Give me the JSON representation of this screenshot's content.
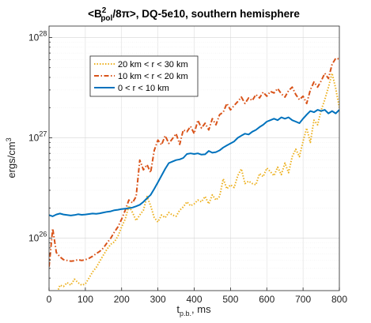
{
  "chart_data": {
    "type": "line",
    "title_parts": [
      "<B",
      "2",
      "pol",
      "/8π>, DQ-5e10, southern hemisphere"
    ],
    "xlabel_parts": [
      "t",
      "p.b.",
      ", ms"
    ],
    "ylabel_parts": [
      "ergs/cm",
      "3"
    ],
    "xlim": [
      0,
      800
    ],
    "ylim": [
      30000000000000000000000000,
      13000000000000000000000000000
    ],
    "yscale": "log",
    "grid": true,
    "legend_position": "upper-left",
    "x_ticks": [
      0,
      100,
      200,
      300,
      400,
      500,
      600,
      700,
      800
    ],
    "x_tick_labels": [
      "0",
      "100",
      "200",
      "300",
      "400",
      "500",
      "600",
      "700",
      "800"
    ],
    "y_ticks": [
      1e+26,
      1e+27,
      1e+28
    ],
    "y_tick_labels": [
      {
        "base": "10",
        "exp": "26"
      },
      {
        "base": "10",
        "exp": "27"
      },
      {
        "base": "10",
        "exp": "28"
      }
    ],
    "series": [
      {
        "name": "20 km < r < 30 km",
        "color": "#EDB120",
        "style": "dotted",
        "points": [
          [
            0,
            2.95e+25
          ],
          [
            10,
            2.6e+25
          ],
          [
            20,
            2.7e+25
          ],
          [
            30,
            3.4e+25
          ],
          [
            40,
            3.3e+25
          ],
          [
            50,
            3.6e+25
          ],
          [
            60,
            3.4e+25
          ],
          [
            70,
            3.9e+25
          ],
          [
            80,
            3.6e+25
          ],
          [
            90,
            3.4e+25
          ],
          [
            100,
            3.5e+25
          ],
          [
            110,
            4e+25
          ],
          [
            120,
            4.6e+25
          ],
          [
            130,
            5.1e+25
          ],
          [
            140,
            5.9e+25
          ],
          [
            150,
            6.8e+25
          ],
          [
            160,
            7.8e+25
          ],
          [
            170,
            8.7e+25
          ],
          [
            180,
            9.2e+25
          ],
          [
            190,
            1.05e+26
          ],
          [
            200,
            1.3e+26
          ],
          [
            210,
            1.55e+26
          ],
          [
            220,
            2.1e+26
          ],
          [
            230,
            1.8e+26
          ],
          [
            240,
            1.5e+26
          ],
          [
            250,
            1.7e+26
          ],
          [
            260,
            1.9e+26
          ],
          [
            270,
            2.6e+26
          ],
          [
            280,
            2.1e+26
          ],
          [
            290,
            1.6e+26
          ],
          [
            300,
            1.45e+26
          ],
          [
            310,
            1.7e+26
          ],
          [
            320,
            1.6e+26
          ],
          [
            330,
            1.8e+26
          ],
          [
            340,
            1.7e+26
          ],
          [
            350,
            1.65e+26
          ],
          [
            360,
            1.9e+26
          ],
          [
            370,
            2.05e+26
          ],
          [
            380,
            2.3e+26
          ],
          [
            390,
            2.1e+26
          ],
          [
            400,
            2.2e+26
          ],
          [
            410,
            2.4e+26
          ],
          [
            420,
            2.3e+26
          ],
          [
            430,
            2.6e+26
          ],
          [
            440,
            2.2e+26
          ],
          [
            450,
            2.7e+26
          ],
          [
            460,
            2.4e+26
          ],
          [
            470,
            2.6e+26
          ],
          [
            480,
            3.9e+26
          ],
          [
            490,
            3.1e+26
          ],
          [
            500,
            3.4e+26
          ],
          [
            510,
            3.2e+26
          ],
          [
            520,
            4.2e+26
          ],
          [
            530,
            4.9e+26
          ],
          [
            540,
            3.5e+26
          ],
          [
            550,
            3.7e+26
          ],
          [
            560,
            3.5e+26
          ],
          [
            570,
            3.4e+26
          ],
          [
            580,
            4.4e+26
          ],
          [
            590,
            4.1e+26
          ],
          [
            600,
            5e+26
          ],
          [
            610,
            4.6e+26
          ],
          [
            620,
            4.2e+26
          ],
          [
            630,
            5.1e+26
          ],
          [
            640,
            4.3e+26
          ],
          [
            650,
            5.6e+26
          ],
          [
            660,
            4.5e+26
          ],
          [
            670,
            6.5e+26
          ],
          [
            680,
            7.7e+26
          ],
          [
            690,
            6.5e+26
          ],
          [
            700,
            9.2e+26
          ],
          [
            710,
            1.25e+27
          ],
          [
            720,
            9e+26
          ],
          [
            730,
            1.5e+27
          ],
          [
            740,
            1.35e+27
          ],
          [
            750,
            1.9e+27
          ],
          [
            760,
            2.4e+27
          ],
          [
            770,
            3.2e+27
          ],
          [
            780,
            4.4e+27
          ],
          [
            790,
            3.1e+27
          ],
          [
            800,
            2e+27
          ]
        ]
      },
      {
        "name": "10 km < r < 20 km",
        "color": "#D95319",
        "style": "dashdot",
        "points": [
          [
            0,
            5.2e+25
          ],
          [
            5,
            8e+25
          ],
          [
            10,
            1.25e+26
          ],
          [
            15,
            9.5e+25
          ],
          [
            20,
            7.2e+25
          ],
          [
            30,
            6.5e+25
          ],
          [
            40,
            6.1e+25
          ],
          [
            50,
            6e+25
          ],
          [
            60,
            5.9e+25
          ],
          [
            70,
            5.95e+25
          ],
          [
            80,
            6.1e+25
          ],
          [
            90,
            6e+25
          ],
          [
            100,
            6.1e+25
          ],
          [
            110,
            6.3e+25
          ],
          [
            120,
            6.6e+25
          ],
          [
            130,
            7e+25
          ],
          [
            140,
            7.4e+25
          ],
          [
            150,
            8e+25
          ],
          [
            160,
            9e+25
          ],
          [
            170,
            1e+26
          ],
          [
            180,
            1.15e+26
          ],
          [
            190,
            1.3e+26
          ],
          [
            200,
            1.55e+26
          ],
          [
            210,
            1.9e+26
          ],
          [
            220,
            2.4e+26
          ],
          [
            230,
            2.25e+26
          ],
          [
            240,
            2.6e+26
          ],
          [
            250,
            6e+26
          ],
          [
            260,
            4.8e+26
          ],
          [
            270,
            5.4e+26
          ],
          [
            280,
            4.5e+26
          ],
          [
            290,
            7.5e+26
          ],
          [
            300,
            9.5e+26
          ],
          [
            310,
            8.5e+26
          ],
          [
            320,
            1.05e+27
          ],
          [
            330,
            8.8e+26
          ],
          [
            340,
            9.8e+26
          ],
          [
            350,
            1.1e+27
          ],
          [
            360,
            8.6e+26
          ],
          [
            370,
            1.2e+27
          ],
          [
            380,
            1.15e+27
          ],
          [
            390,
            1.3e+27
          ],
          [
            400,
            1.1e+27
          ],
          [
            410,
            1.5e+27
          ],
          [
            420,
            1.25e+27
          ],
          [
            430,
            1.4e+27
          ],
          [
            440,
            1.2e+27
          ],
          [
            450,
            1.55e+27
          ],
          [
            460,
            1.35e+27
          ],
          [
            470,
            1.7e+27
          ],
          [
            480,
            1.8e+27
          ],
          [
            490,
            2.2e+27
          ],
          [
            500,
            1.9e+27
          ],
          [
            510,
            2.1e+27
          ],
          [
            520,
            2.3e+27
          ],
          [
            530,
            2.55e+27
          ],
          [
            540,
            2.2e+27
          ],
          [
            550,
            2.5e+27
          ],
          [
            560,
            2.35e+27
          ],
          [
            570,
            2.7e+27
          ],
          [
            580,
            2.5e+27
          ],
          [
            590,
            2.85e+27
          ],
          [
            600,
            2.6e+27
          ],
          [
            610,
            2.9e+27
          ],
          [
            620,
            2.8e+27
          ],
          [
            630,
            3.1e+27
          ],
          [
            640,
            2.75e+27
          ],
          [
            650,
            2.55e+27
          ],
          [
            660,
            2.95e+27
          ],
          [
            670,
            3.2e+27
          ],
          [
            680,
            2.7e+27
          ],
          [
            690,
            2.4e+27
          ],
          [
            700,
            2.6e+27
          ],
          [
            710,
            2.2e+27
          ],
          [
            720,
            3e+27
          ],
          [
            730,
            3.6e+27
          ],
          [
            740,
            3.2e+27
          ],
          [
            750,
            3.7e+27
          ],
          [
            760,
            4.4e+27
          ],
          [
            770,
            3.9e+27
          ],
          [
            780,
            5.4e+27
          ],
          [
            790,
            6.2e+27
          ],
          [
            800,
            6.1e+27
          ]
        ]
      },
      {
        "name": "0 < r < 10 km",
        "color": "#0072BD",
        "style": "solid",
        "points": [
          [
            0,
            1.7e+26
          ],
          [
            10,
            1.65e+26
          ],
          [
            20,
            1.72e+26
          ],
          [
            30,
            1.76e+26
          ],
          [
            40,
            1.72e+26
          ],
          [
            50,
            1.7e+26
          ],
          [
            60,
            1.68e+26
          ],
          [
            70,
            1.7e+26
          ],
          [
            80,
            1.73e+26
          ],
          [
            90,
            1.71e+26
          ],
          [
            100,
            1.72e+26
          ],
          [
            110,
            1.74e+26
          ],
          [
            120,
            1.76e+26
          ],
          [
            130,
            1.75e+26
          ],
          [
            140,
            1.77e+26
          ],
          [
            150,
            1.8e+26
          ],
          [
            160,
            1.83e+26
          ],
          [
            170,
            1.85e+26
          ],
          [
            180,
            1.9e+26
          ],
          [
            190,
            1.92e+26
          ],
          [
            200,
            1.95e+26
          ],
          [
            210,
            1.97e+26
          ],
          [
            220,
            1.99e+26
          ],
          [
            230,
            2.02e+26
          ],
          [
            240,
            2.08e+26
          ],
          [
            250,
            2.15e+26
          ],
          [
            260,
            2.3e+26
          ],
          [
            270,
            2.5e+26
          ],
          [
            280,
            2.7e+26
          ],
          [
            290,
            3.1e+26
          ],
          [
            300,
            3.6e+26
          ],
          [
            310,
            4.2e+26
          ],
          [
            320,
            4.9e+26
          ],
          [
            330,
            5.6e+26
          ],
          [
            340,
            5.8e+26
          ],
          [
            350,
            6e+26
          ],
          [
            360,
            6.1e+26
          ],
          [
            370,
            6.3e+26
          ],
          [
            380,
            6.9e+26
          ],
          [
            390,
            7e+26
          ],
          [
            400,
            6.9e+26
          ],
          [
            410,
            7e+26
          ],
          [
            420,
            6.8e+26
          ],
          [
            430,
            6.85e+26
          ],
          [
            440,
            7.4e+26
          ],
          [
            450,
            7.1e+26
          ],
          [
            460,
            7.2e+26
          ],
          [
            470,
            7.5e+26
          ],
          [
            480,
            8e+26
          ],
          [
            490,
            8.4e+26
          ],
          [
            500,
            8.8e+26
          ],
          [
            510,
            9.2e+26
          ],
          [
            520,
            1e+27
          ],
          [
            530,
            1.05e+27
          ],
          [
            540,
            1.1e+27
          ],
          [
            550,
            1.08e+27
          ],
          [
            560,
            1.15e+27
          ],
          [
            570,
            1.2e+27
          ],
          [
            580,
            1.28e+27
          ],
          [
            590,
            1.35e+27
          ],
          [
            600,
            1.45e+27
          ],
          [
            610,
            1.5e+27
          ],
          [
            620,
            1.55e+27
          ],
          [
            630,
            1.5e+27
          ],
          [
            640,
            1.6e+27
          ],
          [
            650,
            1.55e+27
          ],
          [
            660,
            1.6e+27
          ],
          [
            670,
            1.5e+27
          ],
          [
            680,
            1.45e+27
          ],
          [
            690,
            1.4e+27
          ],
          [
            700,
            1.55e+27
          ],
          [
            710,
            1.7e+27
          ],
          [
            720,
            1.85e+27
          ],
          [
            730,
            1.8e+27
          ],
          [
            740,
            1.9e+27
          ],
          [
            750,
            1.85e+27
          ],
          [
            760,
            1.9e+27
          ],
          [
            770,
            1.75e+27
          ],
          [
            780,
            1.85e+27
          ],
          [
            790,
            1.75e+27
          ],
          [
            800,
            1.9e+27
          ]
        ]
      }
    ]
  }
}
